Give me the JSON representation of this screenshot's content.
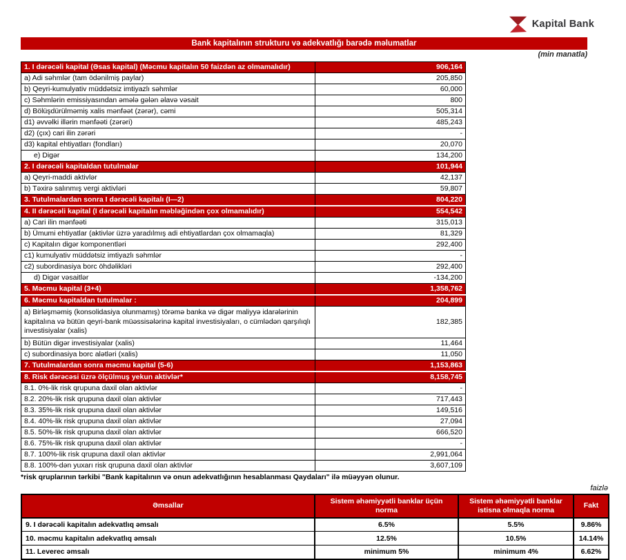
{
  "colors": {
    "accent_red": "#C00000",
    "logo_red": "#C2242C",
    "logo_dark_red": "#9B1B20"
  },
  "brand": {
    "name": "Kapital Bank"
  },
  "title_bar": {
    "text": "Bank kapitalının strukturu və adekvatlığı barədə məlumatlar"
  },
  "unit_note": "(min manatla)",
  "main_table": {
    "rows": [
      {
        "type": "section",
        "label": "1. I dərəcəli kapital (Əsas kapital) (Məcmu kapitalın 50 faizdən  az olmamalıdır)",
        "value": "906,164"
      },
      {
        "type": "item",
        "label": "a) Adi səhmlər (tam ödənilmiş paylar)",
        "value": "205,850"
      },
      {
        "type": "item",
        "label": "b) Qeyri-kumulyativ müddətsiz imtiyazlı səhmlər",
        "value": "60,000"
      },
      {
        "type": "item",
        "label": "c) Səhmlərin emissiyasından əmələ gələn  əlavə vəsait",
        "value": "800"
      },
      {
        "type": "item",
        "label": "d)   Bölüşdürülməmiş xalis mənfəət (zərər), cəmi",
        "value": "505,314"
      },
      {
        "type": "item",
        "label": "d1) əvvəlki illərin mənfəəti (zərəri)",
        "value": "485,243"
      },
      {
        "type": "item",
        "label": "d2) (çıx) cari ilin zərəri",
        "value": "-"
      },
      {
        "type": "item",
        "label": "d3) kapital ehtiyatları (fondları)",
        "value": "20,070"
      },
      {
        "type": "item",
        "label": "e) Digər",
        "value": "134,200",
        "indent": true
      },
      {
        "type": "section",
        "label": "2. I dərəcəli kapitaldan  tutulmalar",
        "value": "101,944"
      },
      {
        "type": "item",
        "label": "a) Qeyri-maddi aktivlər",
        "value": "42,137"
      },
      {
        "type": "item",
        "label": "b) Təxirə salınmış vergi aktivləri",
        "value": "59,807"
      },
      {
        "type": "section",
        "label": "3. Tutulmalardan  sonra I dərəcəli kapitalı (I—2)",
        "value": "804,220"
      },
      {
        "type": "section",
        "label": "4. II dərəcəli  kapital (I dərəcəli  kapitalın  məbləğindən çox olmamalıdır)",
        "value": "554,542"
      },
      {
        "type": "item",
        "label": "a) Cari ilin mənfəəti",
        "value": "315,013"
      },
      {
        "type": "item",
        "label": "b) Ümumi ehtiyatlar (aktivlər üzrə yaradılmış adi ehtiyatlardan çox olmamaqla)",
        "value": "81,329"
      },
      {
        "type": "item",
        "label": "c)  Kapitalın digər komponentləri",
        "value": "292,400"
      },
      {
        "type": "item",
        "label": "c1) kumulyativ müddətsiz imtiyazlı səhmlər",
        "value": "-"
      },
      {
        "type": "item",
        "label": "c2) subordinasiya borc öhdəlikləri",
        "value": "292,400"
      },
      {
        "type": "item",
        "label": "d) Digər vəsaitlər",
        "value": "-134,200",
        "indent": true
      },
      {
        "type": "section",
        "label": "5. Məcmu kapital (3+4)",
        "value": "1,358,762"
      },
      {
        "type": "section",
        "label": "6. Məcmu kapitaldan tutulmalar :",
        "value": "204,899"
      },
      {
        "type": "item",
        "label": "a)   Birləşməmiş (konsolidasiya olunmamış) törəmə banka və digər maliyyə idarələrinin kapitalına və bütün qeyri-bank müəssisələrinə kapital investisiyaları, o cümlədən qarşılıqlı investisiyalar (xalis)",
        "value": "182,385",
        "multiline": true
      },
      {
        "type": "item",
        "label": "b)   Bütün digər investisiyalar (xalis)",
        "value": "11,464"
      },
      {
        "type": "item",
        "label": "c) subordinasiya borc alətləri (xalis)",
        "value": "11,050"
      },
      {
        "type": "section",
        "label": "7. Tutulmalardan  sonra məcmu kapital (5-6)",
        "value": "1,153,863"
      },
      {
        "type": "section",
        "label": "8. Risk dərəcəsi üzrə ölçülmuş  yekun aktivlər*",
        "value": "8,158,745"
      },
      {
        "type": "item",
        "label": "8.1. 0%-lik risk qrupuna daxil olan aktivlər",
        "value": "-"
      },
      {
        "type": "item",
        "label": "8.2. 20%-lik risk qrupuna daxil olan aktivlər",
        "value": "717,443"
      },
      {
        "type": "item",
        "label": "8.3. 35%-lik risk qrupuna daxil olan aktivlər",
        "value": "149,516"
      },
      {
        "type": "item",
        "label": "8.4. 40%-lik risk qrupuna daxil olan aktivlər",
        "value": "27,094"
      },
      {
        "type": "item",
        "label": "8.5. 50%-lik risk qrupuna daxil olan aktivlər",
        "value": "666,520"
      },
      {
        "type": "item",
        "label": "8.6.  75%-lik risk qrupuna daxil olan aktivlər",
        "value": "-"
      },
      {
        "type": "item",
        "label": "8.7.  100%-lik risk qrupuna daxil olan aktivlər",
        "value": "2,991,064"
      },
      {
        "type": "item",
        "label": "8.8. 100%-dən yuxarı risk qrupuna daxil olan aktivlər",
        "value": "3,607,109"
      }
    ]
  },
  "footnote": "*risk qruplarının tərkibi \"Bank kapitalının və onun adekvatlığının hesablanması Qaydaları\" ilə müəyyən olunur.",
  "percent_note": "faizlə",
  "ratios_table": {
    "headers": {
      "coefficients": "Əmsallar",
      "norm_systemic": "Sistem əhəmiyyətli banklar üçün norma",
      "norm_non_systemic": "Sistem əhəmiyyətli banklar istisna olmaqla norma",
      "fact": "Fakt"
    },
    "rows": [
      {
        "label": "9.  I dərəcəli  kapitalın  adekvatlıq əmsalı",
        "norm_systemic": "6.5%",
        "norm_non_systemic": "5.5%",
        "fact": "9.86%"
      },
      {
        "label": "10. məcmu kapitalın  adekvatlıq  əmsalı",
        "norm_systemic": "12.5%",
        "norm_non_systemic": "10.5%",
        "fact": "14.14%"
      },
      {
        "label": "11. Leverec əmsalı",
        "norm_systemic": "minimum 5%",
        "norm_non_systemic": "minimum 4%",
        "fact": "6.62%"
      }
    ]
  }
}
